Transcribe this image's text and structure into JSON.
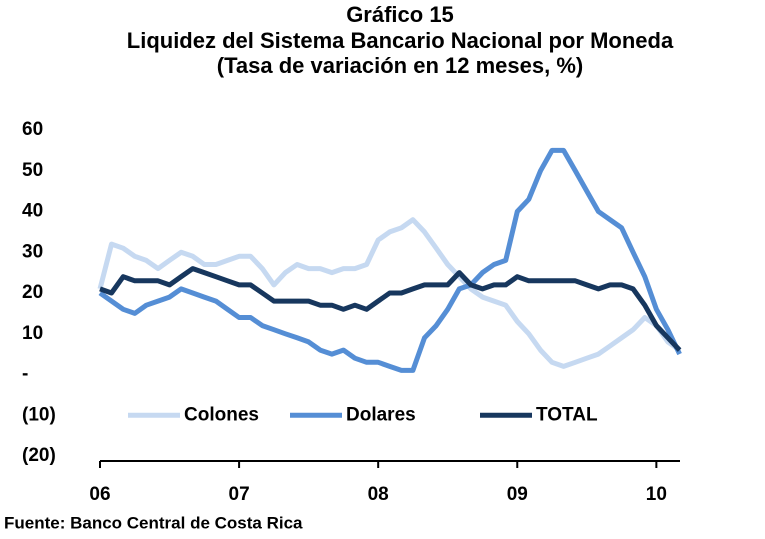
{
  "chart_data": {
    "type": "line",
    "title": "Gráfico 15",
    "subtitle": "Liquidez del Sistema Bancario Nacional por Moneda",
    "subtitle2": "(Tasa de variación en 12 meses, %)",
    "source": "Fuente: Banco Central de Costa Rica",
    "x": [
      2006,
      2006.083,
      2006.167,
      2006.25,
      2006.333,
      2006.417,
      2006.5,
      2006.583,
      2006.667,
      2006.75,
      2006.833,
      2006.917,
      2007,
      2007.083,
      2007.167,
      2007.25,
      2007.333,
      2007.417,
      2007.5,
      2007.583,
      2007.667,
      2007.75,
      2007.833,
      2007.917,
      2008,
      2008.083,
      2008.167,
      2008.25,
      2008.333,
      2008.417,
      2008.5,
      2008.583,
      2008.667,
      2008.75,
      2008.833,
      2008.917,
      2009,
      2009.083,
      2009.167,
      2009.25,
      2009.333,
      2009.417,
      2009.5,
      2009.583,
      2009.667,
      2009.75,
      2009.833,
      2009.917,
      2010,
      2010.083,
      2010.167
    ],
    "series": [
      {
        "name": "Colones",
        "color": "#c6d9f1",
        "values": [
          21,
          32,
          31,
          29,
          28,
          26,
          28,
          30,
          29,
          27,
          27,
          28,
          29,
          29,
          26,
          22,
          25,
          27,
          26,
          26,
          25,
          26,
          26,
          27,
          33,
          35,
          36,
          38,
          35,
          31,
          27,
          24,
          21,
          19,
          18,
          17,
          13,
          10,
          6,
          3,
          2,
          3,
          4,
          5,
          7,
          9,
          11,
          14,
          12,
          8,
          6
        ]
      },
      {
        "name": "Dolares",
        "color": "#558ed5",
        "values": [
          20,
          18,
          16,
          15,
          17,
          18,
          19,
          21,
          20,
          19,
          18,
          16,
          14,
          14,
          12,
          11,
          10,
          9,
          8,
          6,
          5,
          6,
          4,
          3,
          3,
          2,
          1,
          1,
          9,
          12,
          16,
          21,
          22,
          25,
          27,
          28,
          40,
          43,
          50,
          55,
          55,
          50,
          45,
          40,
          38,
          36,
          30,
          24,
          16,
          11,
          5
        ]
      },
      {
        "name": "TOTAL",
        "color": "#17375e",
        "values": [
          21,
          20,
          24,
          23,
          23,
          23,
          22,
          24,
          26,
          25,
          24,
          23,
          22,
          22,
          20,
          18,
          18,
          18,
          18,
          17,
          17,
          16,
          17,
          16,
          18,
          20,
          20,
          21,
          22,
          22,
          22,
          25,
          22,
          21,
          22,
          22,
          24,
          23,
          23,
          23,
          23,
          23,
          22,
          21,
          22,
          22,
          21,
          17,
          12,
          9,
          6
        ]
      }
    ],
    "xlim": [
      2006,
      2010.17
    ],
    "xticks": [
      {
        "value": 2006,
        "label": "06"
      },
      {
        "value": 2007,
        "label": "07"
      },
      {
        "value": 2008,
        "label": "08"
      },
      {
        "value": 2009,
        "label": "09"
      },
      {
        "value": 2010,
        "label": "10"
      }
    ],
    "ylim": [
      -20,
      60
    ],
    "yticks": [
      60,
      50,
      40,
      30,
      20,
      10,
      {
        "value": 0,
        "label": "-"
      },
      {
        "value": -10,
        "label": "(10)"
      },
      {
        "value": -20,
        "label": "(20)"
      }
    ]
  }
}
